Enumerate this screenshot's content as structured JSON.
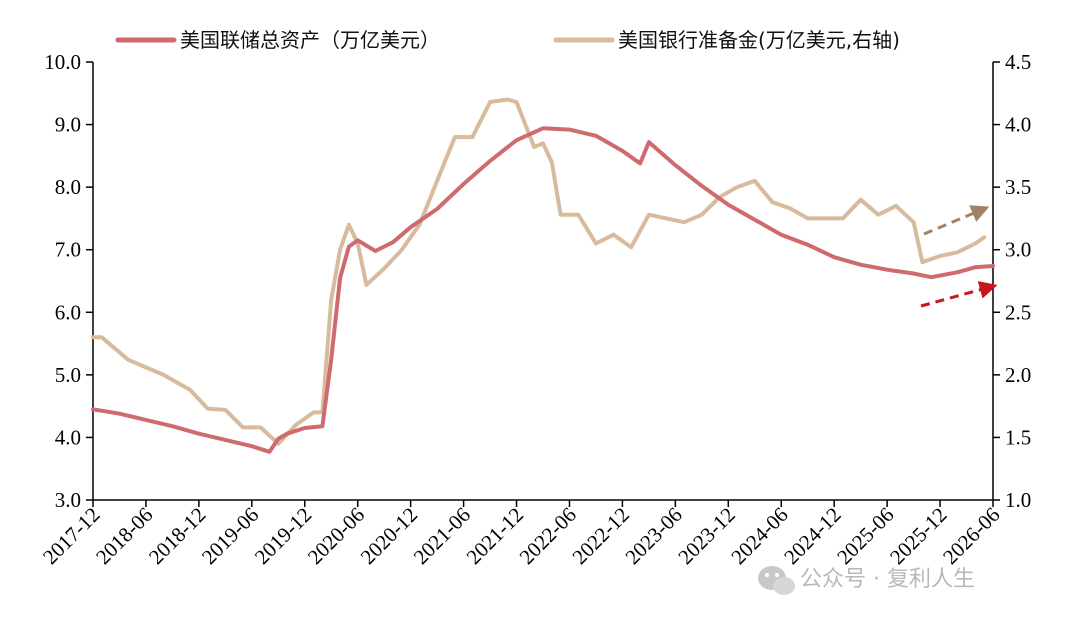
{
  "chart_data": {
    "type": "line",
    "title": "",
    "legend_position": "top",
    "grid": false,
    "y_left": {
      "lim": [
        3.0,
        10.0
      ],
      "ticks": [
        "3.0",
        "4.0",
        "5.0",
        "6.0",
        "7.0",
        "8.0",
        "9.0",
        "10.0"
      ]
    },
    "y_right": {
      "lim": [
        1.0,
        4.5
      ],
      "ticks": [
        "1.0",
        "1.5",
        "2.0",
        "2.5",
        "3.0",
        "3.5",
        "4.0",
        "4.5"
      ]
    },
    "x_tick_labels": [
      "2017-12",
      "2018-06",
      "2018-12",
      "2019-06",
      "2019-12",
      "2020-06",
      "2020-12",
      "2021-06",
      "2021-12",
      "2022-06",
      "2022-12",
      "2023-06",
      "2023-12",
      "2024-06",
      "2024-12",
      "2025-06",
      "2025-12",
      "2026-06"
    ],
    "series": [
      {
        "name": "美国联储总资产（万亿美元）",
        "axis": "left",
        "color": "#cf6a6e",
        "points": [
          [
            "2017-12",
            4.45
          ],
          [
            "2018-03",
            4.38
          ],
          [
            "2018-06",
            4.28
          ],
          [
            "2018-09",
            4.18
          ],
          [
            "2018-12",
            4.06
          ],
          [
            "2019-03",
            3.96
          ],
          [
            "2019-06",
            3.86
          ],
          [
            "2019-08",
            3.77
          ],
          [
            "2019-09",
            3.98
          ],
          [
            "2019-10",
            4.06
          ],
          [
            "2019-12",
            4.15
          ],
          [
            "2020-02",
            4.18
          ],
          [
            "2020-03",
            5.25
          ],
          [
            "2020-04",
            6.55
          ],
          [
            "2020-05",
            7.05
          ],
          [
            "2020-06",
            7.15
          ],
          [
            "2020-08",
            6.98
          ],
          [
            "2020-10",
            7.12
          ],
          [
            "2020-12",
            7.36
          ],
          [
            "2021-03",
            7.65
          ],
          [
            "2021-06",
            8.05
          ],
          [
            "2021-09",
            8.42
          ],
          [
            "2021-12",
            8.75
          ],
          [
            "2022-03",
            8.94
          ],
          [
            "2022-06",
            8.92
          ],
          [
            "2022-09",
            8.82
          ],
          [
            "2022-12",
            8.58
          ],
          [
            "2023-02",
            8.38
          ],
          [
            "2023-03",
            8.72
          ],
          [
            "2023-06",
            8.35
          ],
          [
            "2023-09",
            8.02
          ],
          [
            "2023-12",
            7.72
          ],
          [
            "2024-03",
            7.48
          ],
          [
            "2024-06",
            7.24
          ],
          [
            "2024-09",
            7.08
          ],
          [
            "2024-12",
            6.88
          ],
          [
            "2025-03",
            6.76
          ],
          [
            "2025-06",
            6.68
          ],
          [
            "2025-09",
            6.62
          ],
          [
            "2025-11",
            6.56
          ],
          [
            "2026-02",
            6.64
          ],
          [
            "2026-04",
            6.72
          ],
          [
            "2026-06",
            6.74
          ]
        ]
      },
      {
        "name": "美国银行准备金(万亿美元,右轴)",
        "axis": "right",
        "color": "#d7bb9c",
        "points": [
          [
            "2017-12",
            2.3
          ],
          [
            "2018-01",
            2.3
          ],
          [
            "2018-04",
            2.12
          ],
          [
            "2018-08",
            2.0
          ],
          [
            "2018-11",
            1.88
          ],
          [
            "2019-01",
            1.73
          ],
          [
            "2019-03",
            1.72
          ],
          [
            "2019-05",
            1.58
          ],
          [
            "2019-07",
            1.58
          ],
          [
            "2019-09",
            1.45
          ],
          [
            "2019-11",
            1.6
          ],
          [
            "2020-01",
            1.7
          ],
          [
            "2020-02",
            1.7
          ],
          [
            "2020-03",
            2.6
          ],
          [
            "2020-04",
            3.0
          ],
          [
            "2020-05",
            3.2
          ],
          [
            "2020-06",
            3.05
          ],
          [
            "2020-07",
            2.72
          ],
          [
            "2020-09",
            2.85
          ],
          [
            "2020-11",
            3.0
          ],
          [
            "2021-01",
            3.2
          ],
          [
            "2021-03",
            3.55
          ],
          [
            "2021-05",
            3.9
          ],
          [
            "2021-07",
            3.9
          ],
          [
            "2021-09",
            4.18
          ],
          [
            "2021-11",
            4.2
          ],
          [
            "2021-12",
            4.18
          ],
          [
            "2022-02",
            3.82
          ],
          [
            "2022-03",
            3.85
          ],
          [
            "2022-04",
            3.7
          ],
          [
            "2022-05",
            3.28
          ],
          [
            "2022-07",
            3.28
          ],
          [
            "2022-09",
            3.05
          ],
          [
            "2022-11",
            3.12
          ],
          [
            "2023-01",
            3.02
          ],
          [
            "2023-03",
            3.28
          ],
          [
            "2023-05",
            3.25
          ],
          [
            "2023-07",
            3.22
          ],
          [
            "2023-09",
            3.28
          ],
          [
            "2023-11",
            3.42
          ],
          [
            "2024-01",
            3.5
          ],
          [
            "2024-03",
            3.55
          ],
          [
            "2024-05",
            3.38
          ],
          [
            "2024-07",
            3.33
          ],
          [
            "2024-09",
            3.25
          ],
          [
            "2024-11",
            3.25
          ],
          [
            "2025-01",
            3.25
          ],
          [
            "2025-03",
            3.4
          ],
          [
            "2025-05",
            3.28
          ],
          [
            "2025-07",
            3.35
          ],
          [
            "2025-09",
            3.22
          ],
          [
            "2025-10",
            2.9
          ],
          [
            "2025-12",
            2.95
          ],
          [
            "2026-02",
            2.98
          ],
          [
            "2026-04",
            3.05
          ],
          [
            "2026-05",
            3.1
          ]
        ]
      }
    ]
  },
  "watermark": {
    "text": "公众号 · 复利人生",
    "icon": "wechat-icon"
  }
}
